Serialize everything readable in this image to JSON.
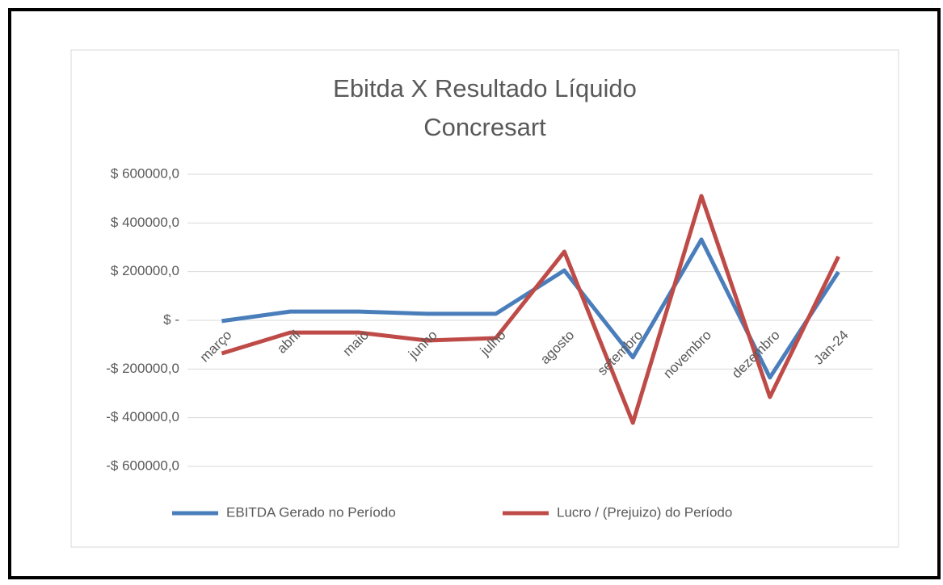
{
  "chart_data": {
    "type": "line",
    "title": [
      "Ebitda X Resultado Líquido",
      "Concresart"
    ],
    "categories": [
      "março",
      "abril",
      "maio",
      "junho",
      "julho",
      "agosto",
      "setembro",
      "novembro",
      "dezembro",
      "Jan-24"
    ],
    "series": [
      {
        "name": "EBITDA Gerado no Período",
        "color": "#4a7ebb",
        "values": [
          -3000,
          36000,
          36000,
          27000,
          27000,
          205000,
          -152000,
          332000,
          -235000,
          199000
        ]
      },
      {
        "name": "Lucro / (Prejuizo) do Período",
        "color": "#be4b48",
        "values": [
          -136000,
          -50000,
          -50000,
          -83000,
          -73000,
          282000,
          -421000,
          511000,
          -315000,
          262000
        ]
      }
    ],
    "ylim": [
      -600000,
      600000
    ],
    "yticks": [
      {
        "value": 600000,
        "label": "$ 600000,0"
      },
      {
        "value": 400000,
        "label": "$ 400000,0"
      },
      {
        "value": 200000,
        "label": "$ 200000,0"
      },
      {
        "value": 0,
        "label": "$ -"
      },
      {
        "value": -200000,
        "label": "-$ 200000,0"
      },
      {
        "value": -400000,
        "label": "-$ 400000,0"
      },
      {
        "value": -600000,
        "label": "-$ 600000,0"
      }
    ],
    "grid": true,
    "legend": "bottom"
  }
}
